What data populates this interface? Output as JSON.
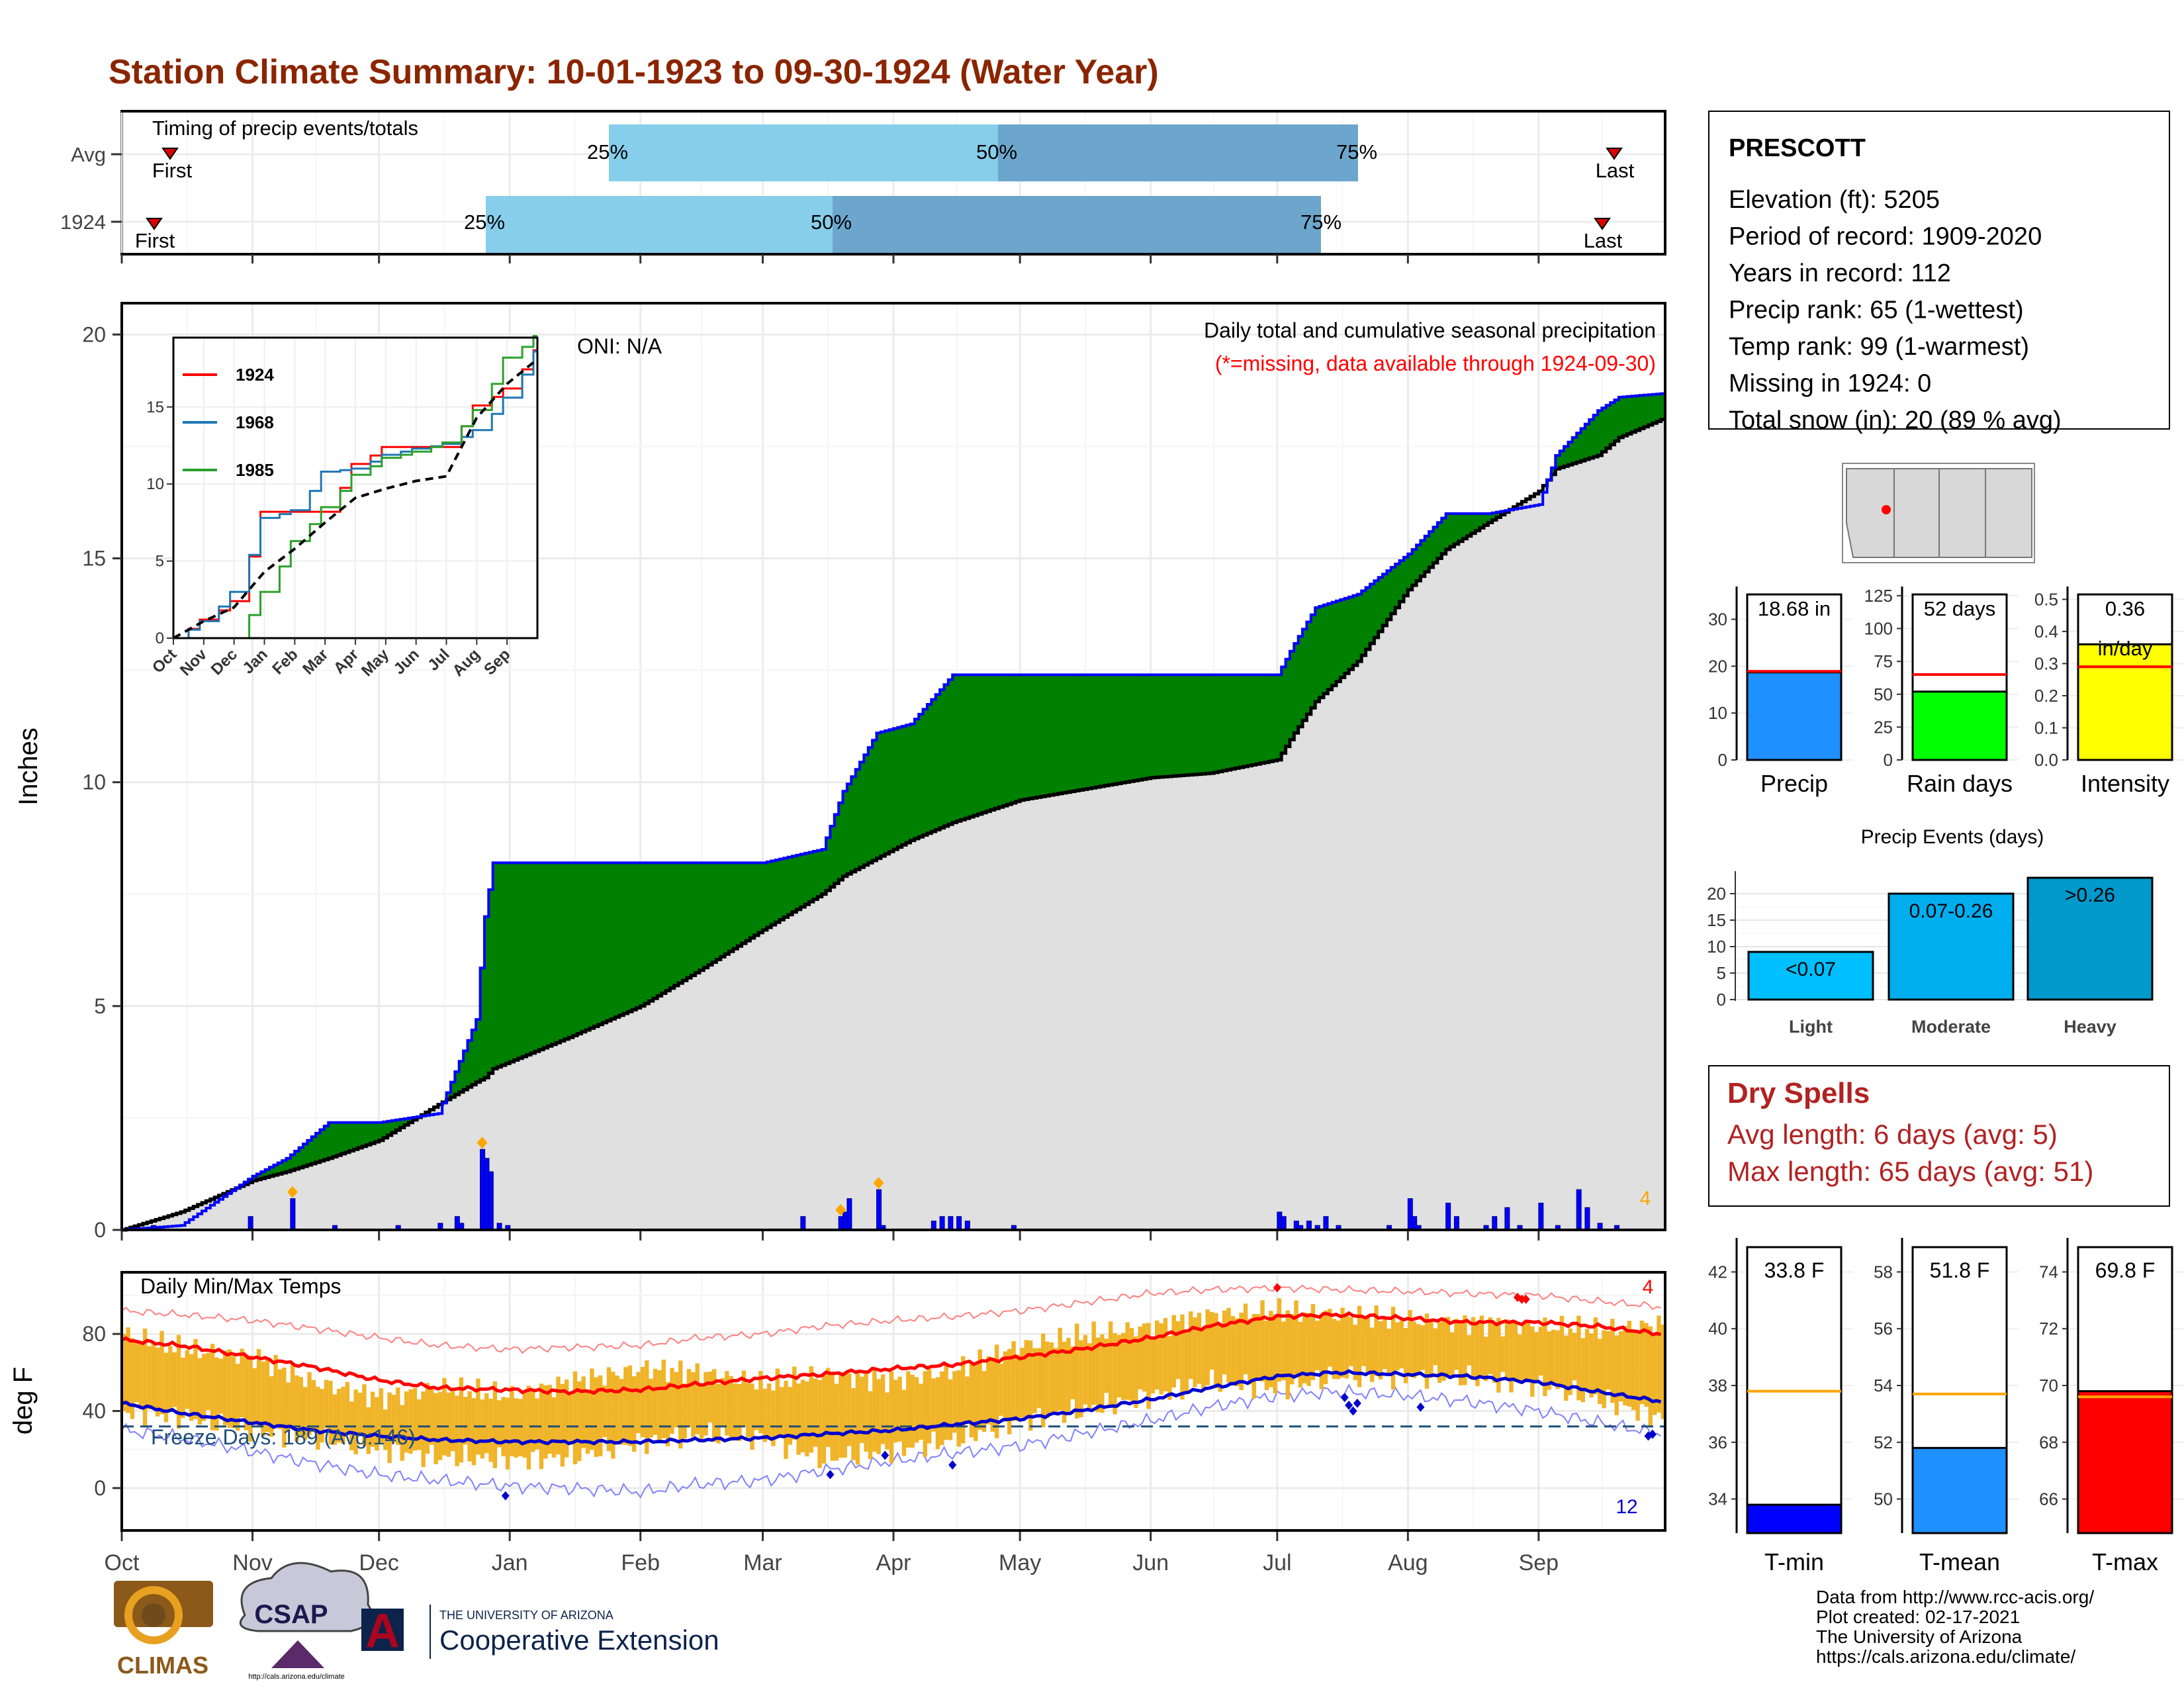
{
  "title": "Station Climate Summary: 10-01-1923 to 09-30-1924 (Water Year)",
  "timing": {
    "label": "Timing of precip events/totals",
    "rows": [
      "Avg",
      "1924"
    ],
    "first_label": "First",
    "last_label": "Last",
    "pct_labels": [
      "25%",
      "50%",
      "75%"
    ]
  },
  "station": {
    "name": "PRESCOTT",
    "lines": [
      "Elevation (ft): 5205",
      "Period of record: 1909-2020",
      "Years in record: 112",
      "Precip rank: 65 (1-wettest)",
      "Temp rank: 99 (1-warmest)",
      "Missing in 1924: 0",
      "Total snow (in): 20 (89 % avg)"
    ]
  },
  "main_panel": {
    "ylabel": "Inches",
    "oni": "ONI: N/A",
    "subtitle": "Daily total and cumulative seasonal precipitation",
    "missing_note": "(*=missing, data available through 1924-09-30)",
    "count_label": "4",
    "yticks": [
      "0",
      "5",
      "10",
      "15",
      "20"
    ]
  },
  "temp_panel": {
    "ylabel": "deg F",
    "label": "Daily Min/Max Temps",
    "freeze_label": "Freeze Days: 189 (Avg:146)",
    "count_high": "4",
    "count_low": "12",
    "yticks": [
      "0",
      "40",
      "80"
    ]
  },
  "months": [
    "Oct",
    "Nov",
    "Dec",
    "Jan",
    "Feb",
    "Mar",
    "Apr",
    "May",
    "Jun",
    "Jul",
    "Aug",
    "Sep"
  ],
  "inset": {
    "legend": [
      "1924",
      "1968",
      "1985"
    ],
    "yticks": [
      "0",
      "5",
      "10",
      "15"
    ],
    "months": [
      "Oct",
      "Nov",
      "Dec",
      "Jan",
      "Feb",
      "Mar",
      "Apr",
      "May",
      "Jun",
      "Jul",
      "Aug",
      "Sep"
    ]
  },
  "mini_bars": [
    {
      "label": "Precip",
      "value_text": "18.68 in",
      "yticks": [
        "0",
        "10",
        "20",
        "30"
      ]
    },
    {
      "label": "Rain days",
      "value_text": "52 days",
      "yticks": [
        "0",
        "25",
        "50",
        "75",
        "100",
        "125"
      ]
    },
    {
      "label": "Intensity",
      "value_text": "0.36",
      "value_unit": "in/day",
      "yticks": [
        "0.0",
        "0.1",
        "0.2",
        "0.3",
        "0.4",
        "0.5"
      ]
    }
  ],
  "events": {
    "title": "Precip Events (days)",
    "categories": [
      "Light",
      "Moderate",
      "Heavy"
    ],
    "bar_labels": [
      "<0.07",
      "0.07-0.26",
      ">0.26"
    ],
    "yticks": [
      "0",
      "5",
      "10",
      "15",
      "20"
    ]
  },
  "dry_spells": {
    "title": "Dry Spells",
    "avg": "Avg length: 6 days (avg: 5)",
    "max": "Max length: 65 days (avg: 51)"
  },
  "temp_bars": [
    {
      "label": "T-min",
      "value_text": "33.8 F",
      "yticks": [
        "34",
        "36",
        "38",
        "40",
        "42"
      ]
    },
    {
      "label": "T-mean",
      "value_text": "51.8 F",
      "yticks": [
        "50",
        "52",
        "54",
        "56",
        "58"
      ]
    },
    {
      "label": "T-max",
      "value_text": "69.8 F",
      "yticks": [
        "66",
        "68",
        "70",
        "72",
        "74"
      ]
    }
  ],
  "logos": {
    "climas": "CLIMAS",
    "csap": "CSAP",
    "csap_url": "http://cals.arizona.edu/climate",
    "ua_small": "THE UNIVERSITY OF ARIZONA",
    "ua_big": "Cooperative Extension"
  },
  "footer": [
    "Data from http://www.rcc-acis.org/",
    "Plot created: 02-17-2021",
    "The University of Arizona",
    "https://cals.arizona.edu/climate/"
  ],
  "colors": {
    "title": "#8B2500",
    "above_avg": "#008000",
    "below_avg": "#8B5A1A",
    "avg_fill": "#E0E0E0",
    "daily_bar": "#0000FF",
    "temp_bar": "#F0B429",
    "tmax": "#FF0000",
    "tmin": "#0000CC",
    "dry": "#B22222"
  },
  "chart_data": [
    {
      "type": "bar",
      "name": "timing",
      "rows": [
        "Avg",
        "1924"
      ],
      "first": [
        "Oct 5",
        "Oct 4"
      ],
      "p25": [
        "Jan 23",
        "Dec 25"
      ],
      "p50": [
        "Apr 22",
        "Mar 28"
      ],
      "p75": [
        "Jul 19",
        "Jul 16"
      ],
      "last": [
        "Sep 24",
        "Sep 21"
      ]
    },
    {
      "type": "area",
      "name": "cumulative_precipitation",
      "x": [
        "Oct 1",
        "Oct 15",
        "Nov 1",
        "Nov 9",
        "Nov 19",
        "Dec 1",
        "Dec 15",
        "Dec 24",
        "Dec 26",
        "Dec 28",
        "Jan 15",
        "Feb 1",
        "Feb 15",
        "Mar 1",
        "Mar 15",
        "Mar 20",
        "Mar 28",
        "Apr 5",
        "Apr 15",
        "May 1",
        "Jun 1",
        "Jun 15",
        "Jul 1",
        "Jul 5",
        "Jul 10",
        "Jul 20",
        "Aug 1",
        "Aug 10",
        "Aug 20",
        "Sep 1",
        "Sep 5",
        "Sep 15",
        "Sep 20",
        "Sep 30"
      ],
      "series": [
        {
          "name": "1924",
          "values": [
            0.0,
            0.1,
            1.2,
            1.6,
            2.4,
            2.4,
            2.6,
            4.7,
            7.0,
            8.2,
            8.2,
            8.2,
            8.2,
            8.2,
            8.5,
            9.8,
            11.1,
            11.3,
            12.4,
            12.4,
            12.4,
            12.4,
            12.4,
            13.1,
            13.9,
            14.2,
            15.1,
            16.0,
            16.0,
            16.2,
            17.3,
            18.3,
            18.6,
            18.68
          ]
        },
        {
          "name": "average",
          "values": [
            0.0,
            0.4,
            1.1,
            1.3,
            1.6,
            2.0,
            2.8,
            3.3,
            3.4,
            3.6,
            4.3,
            5.0,
            5.8,
            6.7,
            7.5,
            7.9,
            8.3,
            8.7,
            9.1,
            9.6,
            10.1,
            10.2,
            10.5,
            11.1,
            11.8,
            12.7,
            14.3,
            15.2,
            15.8,
            16.5,
            17.0,
            17.3,
            17.7,
            18.1
          ]
        }
      ],
      "ylabel": "Inches",
      "ylim": [
        0,
        20
      ]
    },
    {
      "type": "bar",
      "name": "daily_precipitation",
      "x": [
        "Oct 8",
        "Oct 31",
        "Nov 10",
        "Nov 20",
        "Dec 5",
        "Dec 15",
        "Dec 19",
        "Dec 20",
        "Dec 25",
        "Dec 26",
        "Dec 27",
        "Dec 29",
        "Dec 31",
        "Mar 10",
        "Mar 19",
        "Mar 20",
        "Mar 21",
        "Mar 28",
        "Mar 29",
        "Apr 10",
        "Apr 12",
        "Apr 14",
        "Apr 16",
        "Apr 18",
        "Apr 29",
        "Jul 1",
        "Jul 2",
        "Jul 5",
        "Jul 6",
        "Jul 8",
        "Jul 10",
        "Jul 12",
        "Jul 15",
        "Jul 27",
        "Aug 1",
        "Aug 2",
        "Aug 3",
        "Aug 10",
        "Aug 12",
        "Aug 19",
        "Aug 21",
        "Aug 24",
        "Aug 27",
        "Sep 1",
        "Sep 5",
        "Sep 10",
        "Sep 12",
        "Sep 15",
        "Sep 19"
      ],
      "values": [
        0.1,
        0.3,
        0.7,
        0.1,
        0.1,
        0.15,
        0.3,
        0.15,
        1.8,
        1.6,
        1.3,
        0.15,
        0.1,
        0.3,
        0.3,
        0.4,
        0.7,
        0.9,
        0.1,
        0.2,
        0.3,
        0.3,
        0.3,
        0.2,
        0.1,
        0.4,
        0.3,
        0.2,
        0.1,
        0.2,
        0.1,
        0.3,
        0.1,
        0.1,
        0.7,
        0.3,
        0.1,
        0.6,
        0.3,
        0.1,
        0.3,
        0.5,
        0.1,
        0.6,
        0.1,
        0.9,
        0.5,
        0.15,
        0.1
      ],
      "ylabel": "Inches"
    },
    {
      "type": "line",
      "name": "inset_cumulative",
      "x": [
        "Oct",
        "Nov",
        "Dec",
        "Jan",
        "Feb",
        "Mar",
        "Apr",
        "May",
        "Jun",
        "Jul",
        "Aug",
        "Sep",
        "Oct"
      ],
      "series": [
        {
          "name": "1924",
          "values": [
            0.0,
            1.2,
            2.4,
            8.2,
            8.2,
            8.2,
            11.3,
            12.4,
            12.4,
            12.4,
            15.1,
            16.2,
            18.68
          ]
        },
        {
          "name": "1968",
          "values": [
            0.0,
            1.1,
            3.0,
            7.8,
            8.3,
            10.8,
            11.0,
            11.9,
            12.3,
            12.6,
            13.5,
            15.6,
            18.6
          ]
        },
        {
          "name": "1985",
          "values": [
            0.0,
            0.0,
            0.0,
            3.0,
            6.3,
            8.5,
            10.6,
            11.7,
            12.1,
            12.7,
            14.8,
            18.2,
            19.6
          ]
        },
        {
          "name": "average",
          "values": [
            0.0,
            1.1,
            2.0,
            4.3,
            5.8,
            7.5,
            9.1,
            9.7,
            10.2,
            10.5,
            14.3,
            16.5,
            18.1
          ]
        }
      ],
      "ylim": [
        0,
        19.5
      ]
    },
    {
      "type": "line",
      "name": "daily_temperatures",
      "x": [
        "Oct 1",
        "Oct 15",
        "Nov 1",
        "Nov 15",
        "Dec 1",
        "Dec 15",
        "Jan 1",
        "Jan 15",
        "Feb 1",
        "Feb 15",
        "Mar 1",
        "Mar 15",
        "Apr 1",
        "Apr 15",
        "May 1",
        "May 15",
        "Jun 1",
        "Jun 15",
        "Jul 1",
        "Jul 15",
        "Aug 1",
        "Aug 15",
        "Sep 1",
        "Sep 15",
        "Sep 30"
      ],
      "series": [
        {
          "name": "avg_max",
          "values": [
            77,
            74,
            68,
            63,
            56,
            52,
            51,
            50,
            51,
            54,
            57,
            59,
            62,
            64,
            68,
            72,
            78,
            84,
            89,
            90,
            88,
            86,
            86,
            84,
            80
          ]
        },
        {
          "name": "avg_min",
          "values": [
            44,
            39,
            34,
            30,
            27,
            25,
            24,
            24,
            24,
            25,
            26,
            28,
            30,
            33,
            36,
            40,
            46,
            52,
            58,
            60,
            59,
            58,
            55,
            50,
            45
          ]
        },
        {
          "name": "record_max",
          "values": [
            92,
            90,
            87,
            83,
            78,
            74,
            72,
            73,
            74,
            78,
            80,
            84,
            87,
            89,
            92,
            96,
            101,
            103,
            104,
            103,
            102,
            101,
            100,
            97,
            94
          ]
        },
        {
          "name": "record_min",
          "values": [
            30,
            26,
            19,
            13,
            7,
            4,
            1,
            0,
            -2,
            2,
            4,
            9,
            14,
            18,
            22,
            28,
            35,
            42,
            48,
            50,
            48,
            45,
            40,
            34,
            28
          ]
        },
        {
          "name": "1924_tmax",
          "values": [
            80,
            72,
            68,
            55,
            47,
            52,
            48,
            55,
            62,
            60,
            54,
            59,
            56,
            61,
            74,
            79,
            84,
            90,
            92,
            90,
            87,
            86,
            84,
            82,
            85
          ]
        },
        {
          "name": "1924_tmin",
          "values": [
            40,
            37,
            30,
            26,
            20,
            16,
            15,
            16,
            24,
            28,
            26,
            15,
            20,
            25,
            35,
            40,
            48,
            55,
            52,
            58,
            58,
            57,
            53,
            46,
            36
          ]
        }
      ],
      "ylabel": "deg F",
      "freeze_line": 32
    },
    {
      "type": "bar",
      "name": "summary_bars",
      "categories": [
        "Precip",
        "Rain days",
        "Intensity"
      ],
      "values": [
        18.68,
        52,
        0.36
      ],
      "averages": [
        18.9,
        65,
        0.29
      ],
      "units": [
        "in",
        "days",
        "in/day"
      ]
    },
    {
      "type": "bar",
      "name": "precip_events",
      "categories": [
        "Light",
        "Moderate",
        "Heavy"
      ],
      "values": [
        9,
        20,
        23
      ]
    },
    {
      "type": "bar",
      "name": "temperature_summary",
      "categories": [
        "T-min",
        "T-mean",
        "T-max"
      ],
      "values": [
        33.8,
        51.8,
        69.8
      ],
      "averages": [
        37.8,
        53.7,
        69.6
      ]
    }
  ]
}
